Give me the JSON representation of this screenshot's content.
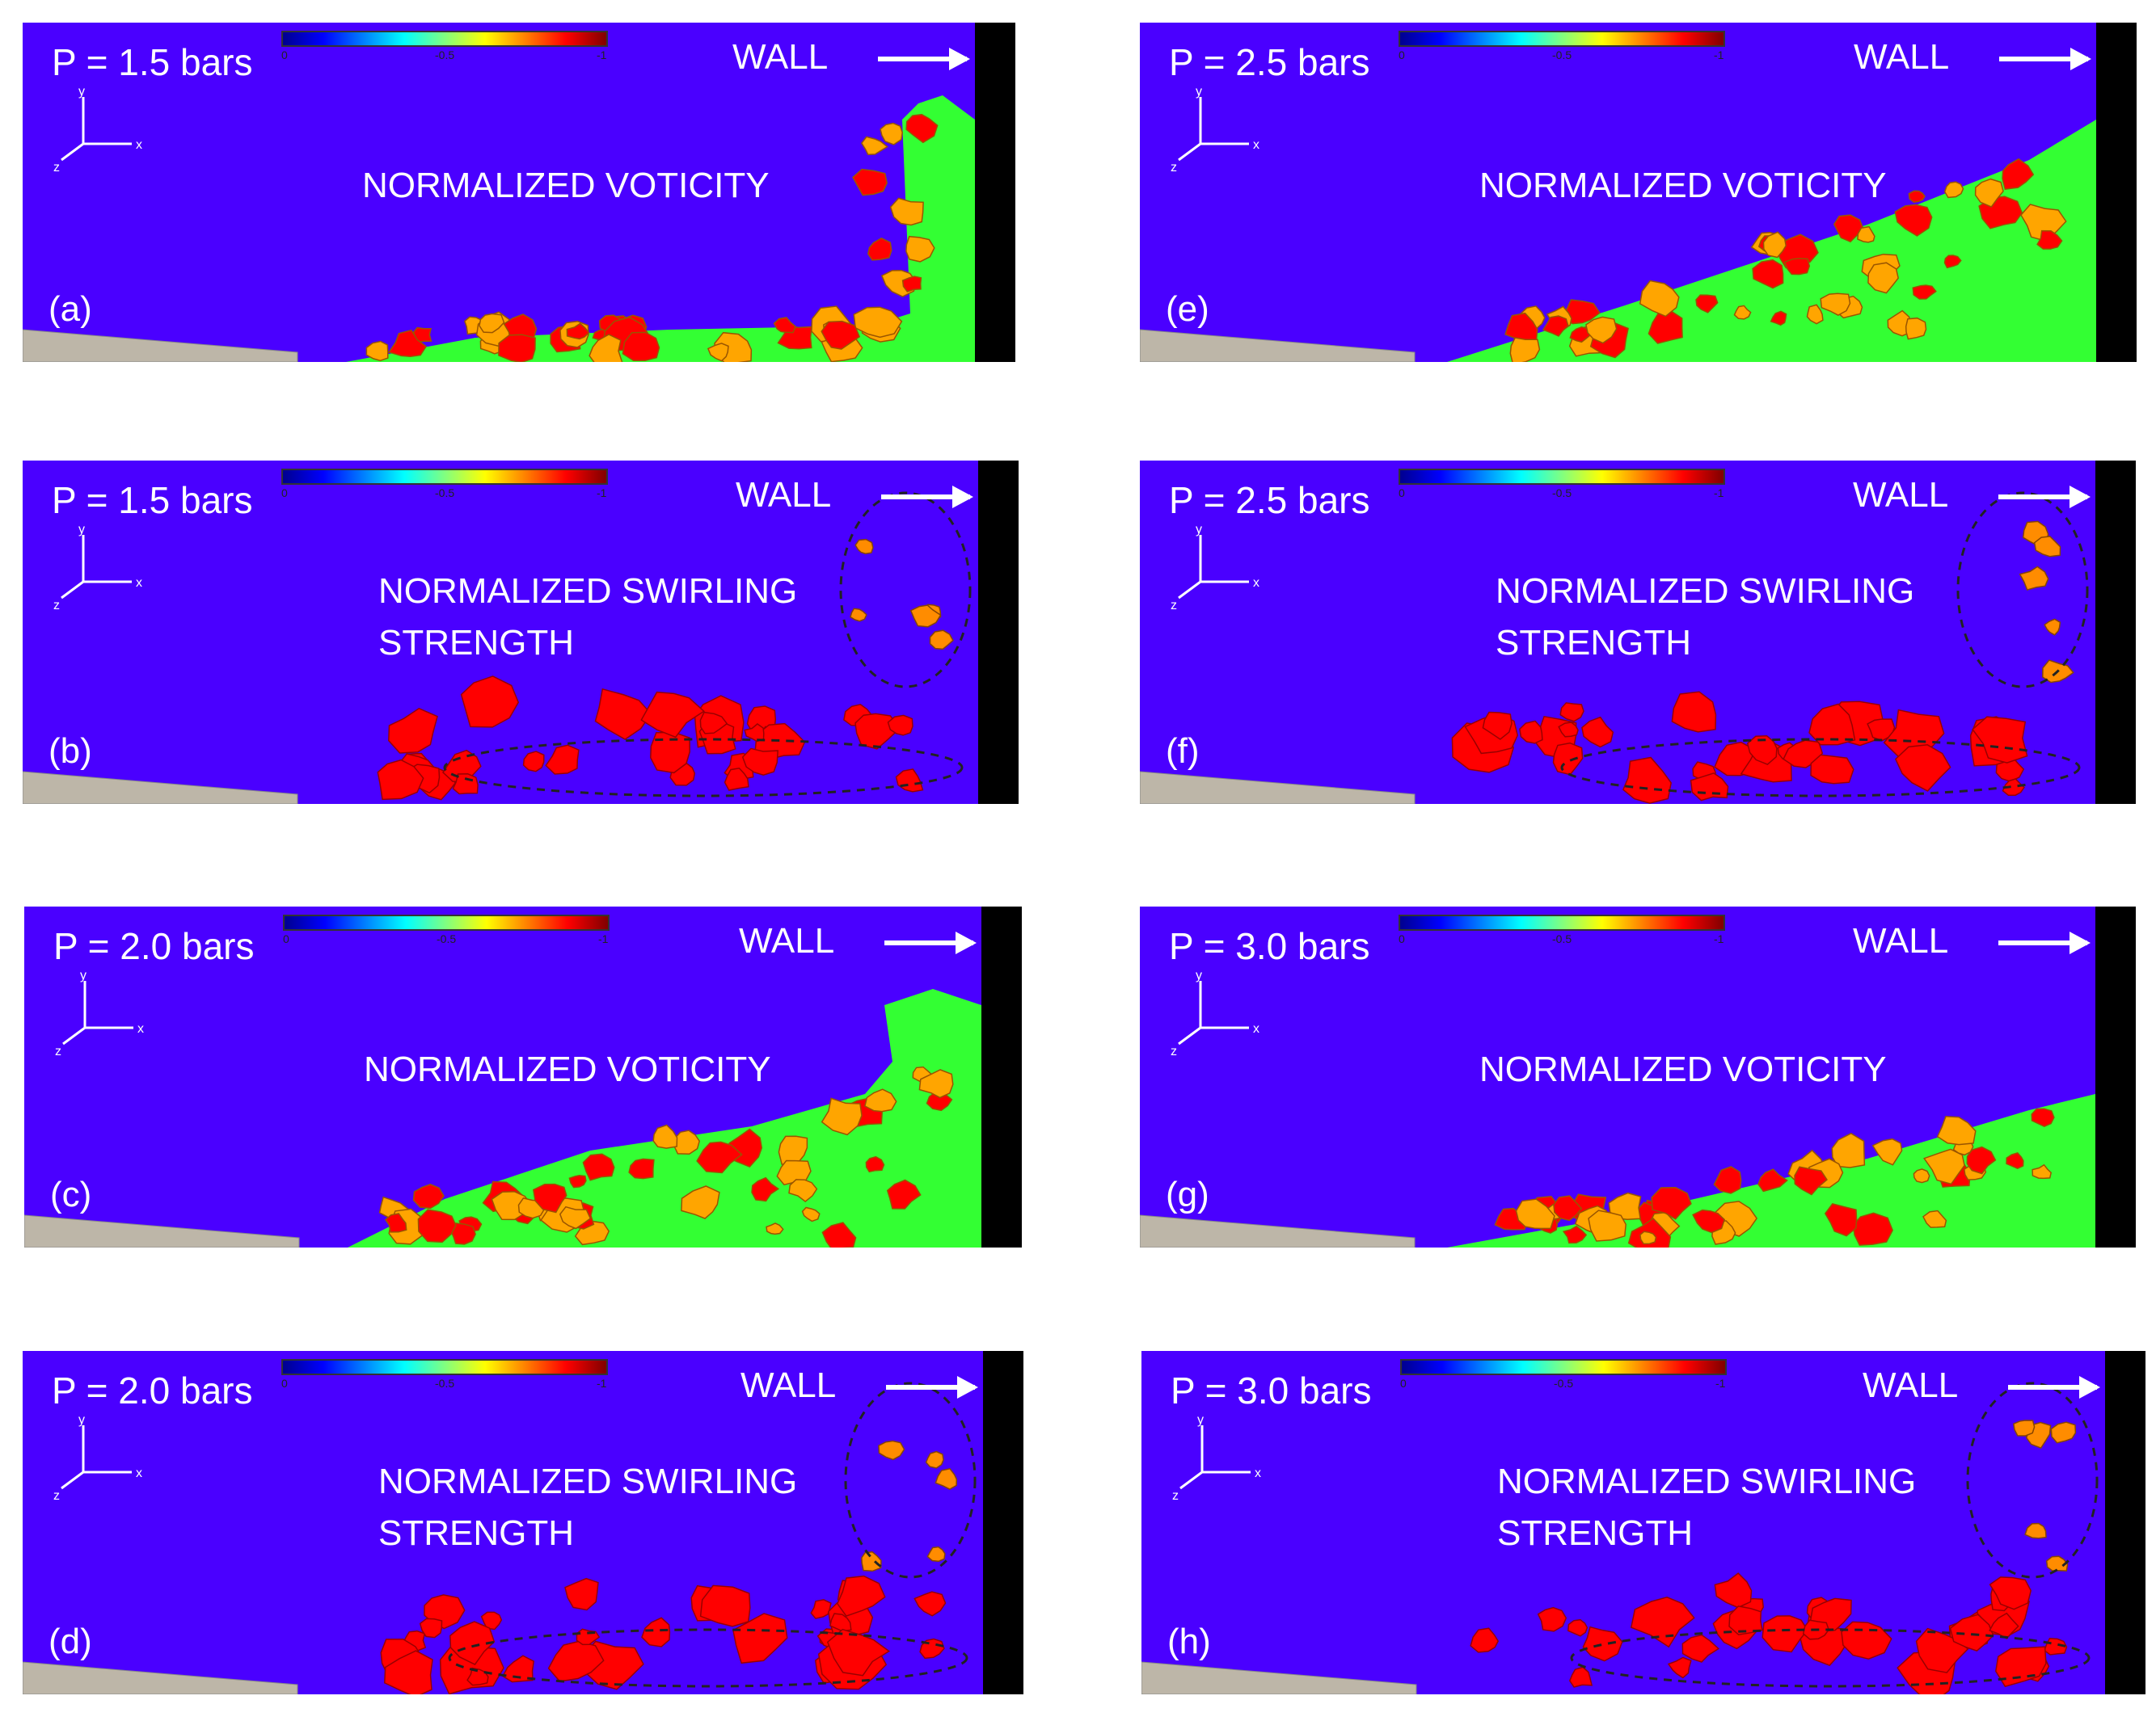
{
  "colors": {
    "background": "#4a00ff",
    "wall": "#000000",
    "vorticity_core": "#ff0000",
    "vorticity_mid": "#ffa500",
    "vorticity_edge": "#33ff33",
    "swirl": "#ff0000",
    "swirl_detached": "#ff8c00"
  },
  "colorbar_ticks": [
    "0",
    "-0.5",
    "-1"
  ],
  "axis_labels": {
    "x": "x",
    "y": "y",
    "z": "z"
  },
  "wall_label": "WALL",
  "panels": [
    {
      "pressure": "P = 1.5 bars",
      "quantity": "NORMALIZED VOTICITY",
      "label": "(a)"
    },
    {
      "pressure": "P = 1.5 bars",
      "quantity": "NORMALIZED SWIRLING\nSTRENGTH",
      "label": "(b)"
    },
    {
      "pressure": "P = 2.0 bars",
      "quantity": "NORMALIZED VOTICITY",
      "label": "(c)"
    },
    {
      "pressure": "P = 2.0 bars",
      "quantity": "NORMALIZED SWIRLING\nSTRENGTH",
      "label": "(d)"
    },
    {
      "pressure": "P = 2.5 bars",
      "quantity": "NORMALIZED VOTICITY",
      "label": "(e)"
    },
    {
      "pressure": "P = 2.5 bars",
      "quantity": "NORMALIZED SWIRLING\nSTRENGTH",
      "label": "(f)"
    },
    {
      "pressure": "P = 3.0 bars",
      "quantity": "NORMALIZED VOTICITY",
      "label": "(g)"
    },
    {
      "pressure": "P = 3.0 bars",
      "quantity": "NORMALIZED SWIRLING\nSTRENGTH",
      "label": "(h)"
    }
  ]
}
